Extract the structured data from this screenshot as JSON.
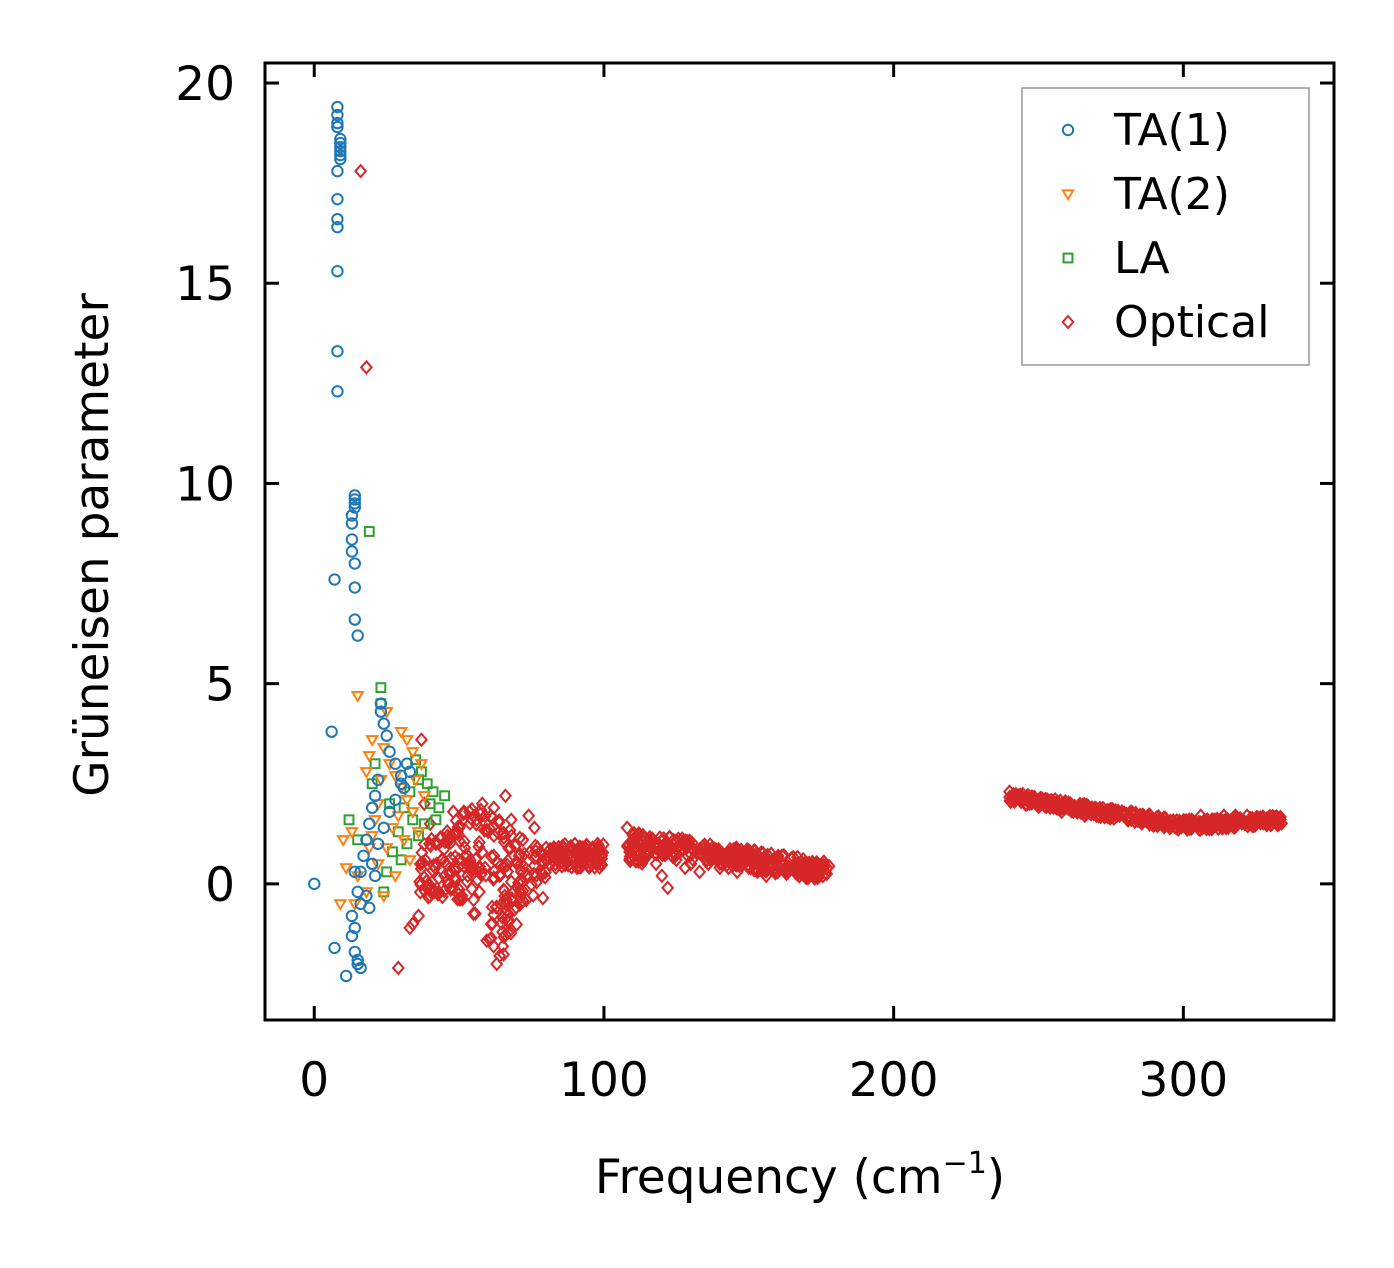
{
  "colors": {
    "TA1": "#1f77b4",
    "TA2": "#ff7f0e",
    "LA": "#2ca02c",
    "Optical": "#d62728"
  },
  "chart_data": {
    "type": "scatter",
    "title": "",
    "xlabel": "Frequency (cm",
    "xlabel_sup": "−1",
    "xlabel_end": ")",
    "ylabel": "Grüneisen parameter",
    "xlim": [
      -17,
      352
    ],
    "ylim": [
      -3.4,
      20.5
    ],
    "xticks": [
      0,
      100,
      200,
      300
    ],
    "xtick_labels": [
      "0",
      "100",
      "200",
      "300"
    ],
    "yticks": [
      0,
      5,
      10,
      15,
      20
    ],
    "ytick_labels": [
      "0",
      "5",
      "10",
      "15",
      "20"
    ],
    "grid": false,
    "legend_position": "top-right",
    "series": [
      {
        "name": "TA(1)",
        "marker": "circle",
        "color_key": "TA1",
        "points": [
          [
            8,
            19.4
          ],
          [
            8,
            19.2
          ],
          [
            8,
            19.0
          ],
          [
            8,
            18.9
          ],
          [
            9,
            18.6
          ],
          [
            9,
            18.5
          ],
          [
            9,
            18.4
          ],
          [
            9,
            18.3
          ],
          [
            9,
            18.2
          ],
          [
            9,
            18.1
          ],
          [
            8,
            17.8
          ],
          [
            8,
            17.1
          ],
          [
            8,
            16.6
          ],
          [
            8,
            16.4
          ],
          [
            8,
            15.3
          ],
          [
            8,
            13.3
          ],
          [
            8,
            12.3
          ],
          [
            14,
            9.7
          ],
          [
            14,
            9.6
          ],
          [
            14,
            9.5
          ],
          [
            14,
            9.4
          ],
          [
            13,
            9.2
          ],
          [
            13,
            9.0
          ],
          [
            13,
            8.6
          ],
          [
            13,
            8.3
          ],
          [
            14,
            8.0
          ],
          [
            7,
            7.6
          ],
          [
            14,
            7.4
          ],
          [
            14,
            6.6
          ],
          [
            15,
            6.2
          ],
          [
            6,
            3.8
          ],
          [
            23,
            4.5
          ],
          [
            23,
            4.3
          ],
          [
            24,
            4.0
          ],
          [
            25,
            3.7
          ],
          [
            26,
            3.3
          ],
          [
            28,
            3.0
          ],
          [
            30,
            2.7
          ],
          [
            32,
            3.0
          ],
          [
            31,
            2.4
          ],
          [
            22,
            2.6
          ],
          [
            21,
            2.2
          ],
          [
            20,
            1.9
          ],
          [
            19,
            1.5
          ],
          [
            18,
            1.1
          ],
          [
            17,
            0.7
          ],
          [
            16,
            0.3
          ],
          [
            14,
            0.3
          ],
          [
            15,
            -0.2
          ],
          [
            16,
            -0.5
          ],
          [
            13,
            -0.8
          ],
          [
            14,
            -1.1
          ],
          [
            13,
            -1.3
          ],
          [
            14,
            -1.7
          ],
          [
            15,
            -1.9
          ],
          [
            15,
            -2.0
          ],
          [
            16,
            -2.1
          ],
          [
            11,
            -2.3
          ],
          [
            7,
            -1.6
          ],
          [
            0,
            0
          ],
          [
            20,
            0.5
          ],
          [
            22,
            1.0
          ],
          [
            24,
            1.4
          ],
          [
            26,
            1.8
          ],
          [
            28,
            2.1
          ],
          [
            30,
            2.5
          ],
          [
            33,
            2.8
          ],
          [
            18,
            -0.3
          ],
          [
            19,
            -0.6
          ],
          [
            21,
            0.2
          ]
        ]
      },
      {
        "name": "TA(2)",
        "marker": "triangle-down",
        "color_key": "TA2",
        "points": [
          [
            15,
            4.7
          ],
          [
            25,
            4.3
          ],
          [
            30,
            3.8
          ],
          [
            32,
            3.6
          ],
          [
            34,
            3.3
          ],
          [
            20,
            3.6
          ],
          [
            19,
            3.2
          ],
          [
            18,
            2.8
          ],
          [
            24,
            3.4
          ],
          [
            26,
            3.0
          ],
          [
            28,
            2.7
          ],
          [
            30,
            2.4
          ],
          [
            32,
            2.1
          ],
          [
            34,
            1.8
          ],
          [
            23,
            2.6
          ],
          [
            22,
            2.0
          ],
          [
            21,
            1.6
          ],
          [
            20,
            1.2
          ],
          [
            19,
            0.9
          ],
          [
            13,
            1.3
          ],
          [
            10,
            1.1
          ],
          [
            11,
            0.4
          ],
          [
            15,
            0.2
          ],
          [
            14,
            -0.5
          ],
          [
            9,
            -0.5
          ],
          [
            18,
            -0.2
          ],
          [
            22,
            0.5
          ],
          [
            25,
            0.9
          ],
          [
            27,
            1.4
          ],
          [
            29,
            1.7
          ],
          [
            31,
            1.1
          ],
          [
            33,
            0.6
          ],
          [
            28,
            0.2
          ],
          [
            24,
            -0.3
          ],
          [
            36,
            1.3
          ],
          [
            38,
            2.2
          ],
          [
            35,
            2.6
          ],
          [
            37,
            3.0
          ]
        ]
      },
      {
        "name": "LA",
        "marker": "square",
        "color_key": "LA",
        "points": [
          [
            23,
            4.9
          ],
          [
            23,
            4.5
          ],
          [
            19,
            8.8
          ],
          [
            12,
            1.6
          ],
          [
            15,
            1.1
          ],
          [
            21,
            3.0
          ],
          [
            20,
            2.5
          ],
          [
            35,
            3.1
          ],
          [
            37,
            2.8
          ],
          [
            39,
            2.5
          ],
          [
            41,
            2.3
          ],
          [
            45,
            2.2
          ],
          [
            43,
            1.9
          ],
          [
            42,
            1.6
          ],
          [
            38,
            1.5
          ],
          [
            36,
            1.2
          ],
          [
            33,
            2.3
          ],
          [
            31,
            1.9
          ],
          [
            29,
            1.3
          ],
          [
            27,
            0.8
          ],
          [
            25,
            0.3
          ],
          [
            24,
            -0.2
          ],
          [
            30,
            0.6
          ],
          [
            32,
            1.0
          ],
          [
            34,
            1.6
          ],
          [
            40,
            2.0
          ],
          [
            36,
            2.6
          ],
          [
            26,
            2.0
          ]
        ]
      },
      {
        "name": "Optical",
        "marker": "diamond",
        "color_key": "Optical",
        "points": [
          [
            16,
            17.8
          ],
          [
            18,
            12.9
          ],
          [
            29,
            -2.1
          ],
          [
            34,
            -1.0
          ],
          [
            36,
            -0.8
          ],
          [
            37,
            3.6
          ],
          [
            40,
            -0.3
          ],
          [
            43,
            -0.2
          ],
          [
            45,
            0.2
          ],
          [
            33,
            -1.1
          ],
          [
            38,
            2.0
          ],
          [
            40,
            1.5
          ],
          [
            42,
            1.0
          ],
          [
            44,
            0.6
          ],
          [
            46,
            1.2
          ],
          [
            48,
            1.8
          ],
          [
            50,
            1.4
          ],
          [
            52,
            0.9
          ],
          [
            54,
            0.5
          ],
          [
            56,
            1.6
          ],
          [
            58,
            2.0
          ],
          [
            60,
            1.3
          ],
          [
            62,
            0.7
          ],
          [
            64,
            0.2
          ],
          [
            66,
            -0.5
          ],
          [
            65,
            -1.2
          ],
          [
            64,
            -1.8
          ],
          [
            63,
            -2.0
          ],
          [
            67,
            -0.9
          ],
          [
            69,
            -0.2
          ],
          [
            70,
            0.5
          ],
          [
            72,
            1.1
          ],
          [
            74,
            1.7
          ],
          [
            76,
            1.4
          ],
          [
            78,
            0.8
          ],
          [
            61,
            1.7
          ],
          [
            59,
            0.4
          ],
          [
            57,
            -0.2
          ],
          [
            55,
            -0.4
          ],
          [
            53,
            0.2
          ],
          [
            51,
            -0.3
          ],
          [
            68,
            1.6
          ],
          [
            66,
            2.2
          ],
          [
            62,
            1.9
          ],
          [
            49,
            0.1
          ],
          [
            47,
            -0.1
          ],
          [
            80,
            0.9
          ],
          [
            82,
            0.7
          ],
          [
            84,
            0.6
          ],
          [
            90,
            0.6
          ],
          [
            93,
            0.8
          ],
          [
            96,
            0.7
          ],
          [
            98,
            0.8
          ],
          [
            108,
            1.4
          ],
          [
            110,
            1.1
          ],
          [
            112,
            0.7
          ],
          [
            115,
            0.8
          ],
          [
            118,
            0.5
          ],
          [
            120,
            0.2
          ],
          [
            122,
            -0.1
          ],
          [
            125,
            0.6
          ],
          [
            128,
            0.4
          ],
          [
            130,
            0.5
          ],
          [
            133,
            0.3
          ],
          [
            136,
            0.5
          ],
          [
            140,
            0.4
          ],
          [
            143,
            0.4
          ],
          [
            146,
            0.3
          ],
          [
            150,
            0.4
          ],
          [
            153,
            0.3
          ],
          [
            156,
            0.2
          ],
          [
            160,
            0.3
          ],
          [
            163,
            0.3
          ],
          [
            166,
            0.3
          ],
          [
            170,
            0.3
          ],
          [
            174,
            0.3
          ],
          [
            177,
            0.4
          ],
          [
            240,
            2.3
          ],
          [
            243,
            2.2
          ],
          [
            246,
            2.1
          ],
          [
            250,
            2.0
          ],
          [
            254,
            1.9
          ],
          [
            258,
            1.8
          ],
          [
            262,
            1.8
          ],
          [
            266,
            1.7
          ],
          [
            270,
            1.7
          ],
          [
            274,
            1.8
          ],
          [
            278,
            1.7
          ],
          [
            282,
            1.6
          ],
          [
            286,
            1.6
          ],
          [
            290,
            1.5
          ],
          [
            294,
            1.5
          ],
          [
            298,
            1.5
          ],
          [
            302,
            1.6
          ],
          [
            306,
            1.7
          ],
          [
            310,
            1.6
          ],
          [
            314,
            1.7
          ],
          [
            318,
            1.7
          ],
          [
            322,
            1.7
          ],
          [
            326,
            1.6
          ],
          [
            330,
            1.6
          ],
          [
            333,
            1.6
          ]
        ],
        "bands": [
          {
            "x": [
              36,
              80
            ],
            "y": [
              -2.1,
              2.3
            ]
          },
          {
            "x": [
              80,
              100
            ],
            "y": [
              0.4,
              1.0
            ]
          },
          {
            "x": [
              108,
              178
            ],
            "y": [
              -0.1,
              1.5
            ]
          },
          {
            "x": [
              240,
              334
            ],
            "y": [
              1.4,
              2.3
            ]
          }
        ]
      }
    ]
  }
}
